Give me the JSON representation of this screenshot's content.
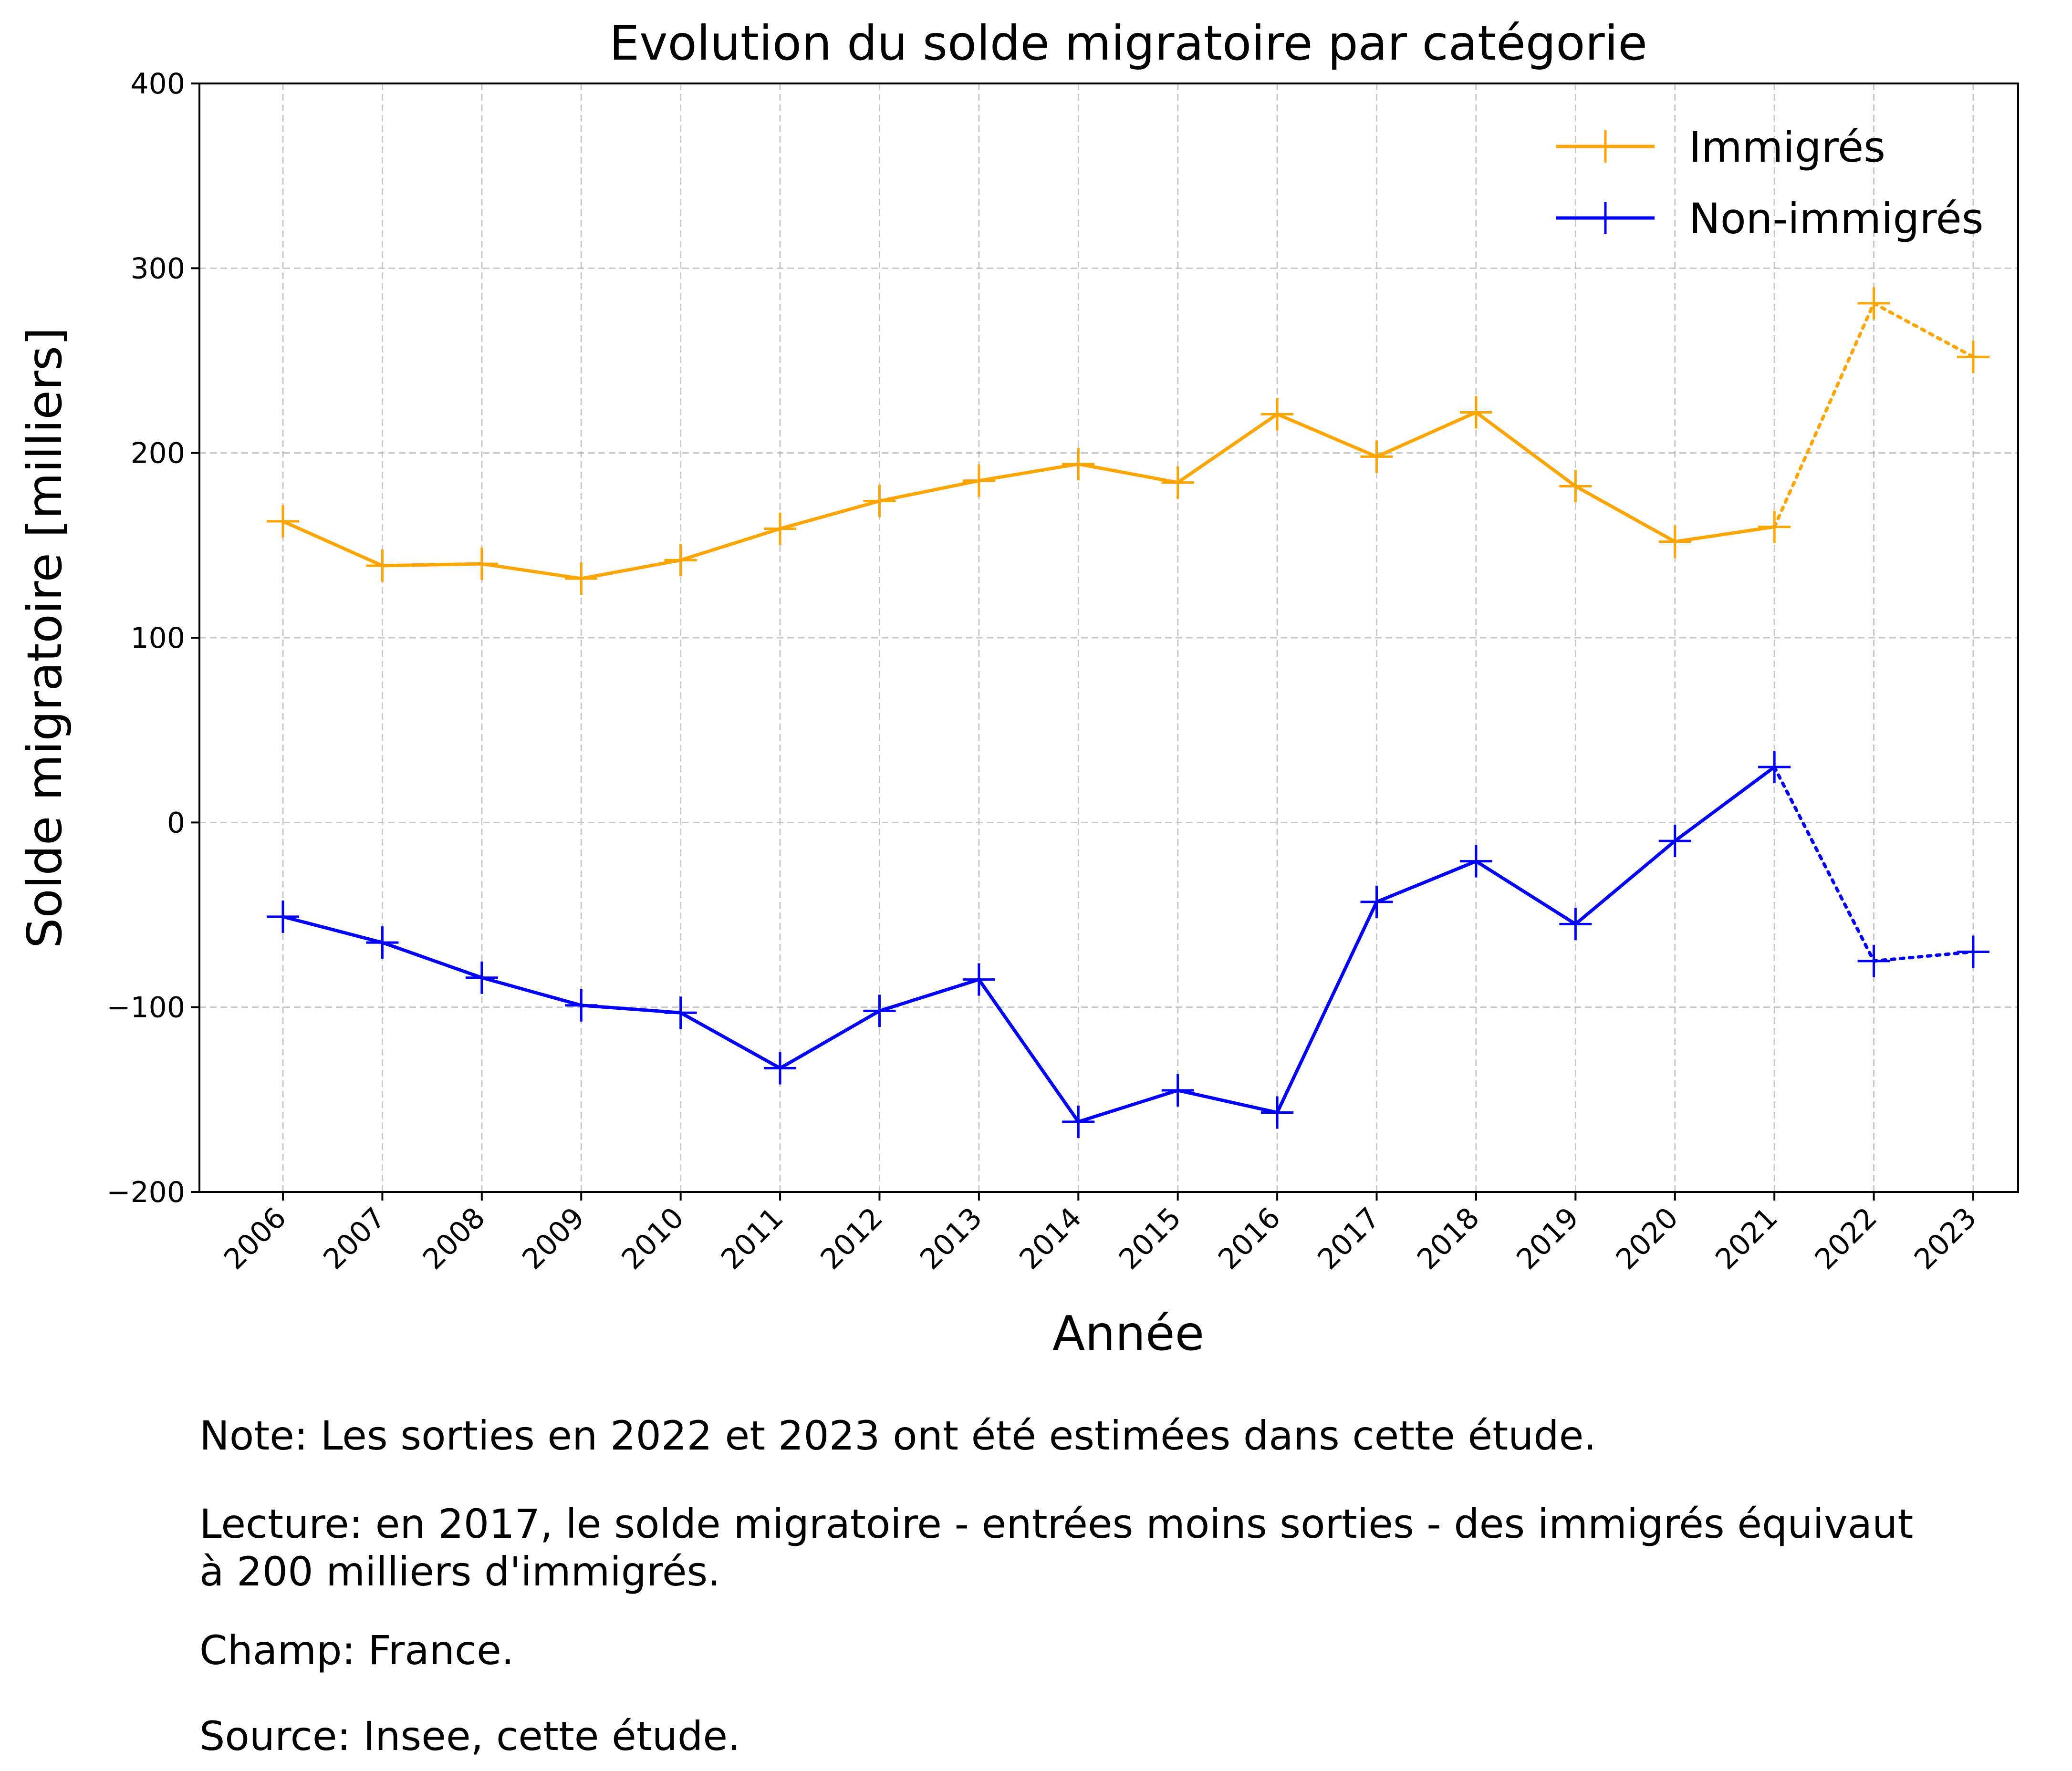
{
  "chart_data": {
    "type": "line",
    "title": "Evolution du solde migratoire par catégorie",
    "xlabel": "Année",
    "ylabel": "Solde migratoire [milliers]",
    "categories": [
      "2006",
      "2007",
      "2008",
      "2009",
      "2010",
      "2011",
      "2012",
      "2013",
      "2014",
      "2015",
      "2016",
      "2017",
      "2018",
      "2019",
      "2020",
      "2021",
      "2022",
      "2023"
    ],
    "ylim": [
      -200,
      400
    ],
    "yticks": [
      -200,
      -100,
      0,
      100,
      200,
      300,
      400
    ],
    "ytick_labels": [
      "−200",
      "−100",
      "0",
      "100",
      "200",
      "300",
      "400"
    ],
    "grid": true,
    "legend_position": "top-right",
    "estimated_from": "2021",
    "series": [
      {
        "name": "Immigrés",
        "color": "#ffa500",
        "marker": "plus",
        "values": [
          163,
          139,
          140,
          132,
          142,
          159,
          174,
          185,
          194,
          184,
          221,
          198,
          222,
          182,
          152,
          160,
          281,
          252
        ]
      },
      {
        "name": "Non-immigrés",
        "color": "#0000ff",
        "marker": "plus",
        "values": [
          -51,
          -65,
          -84,
          -99,
          -103,
          -133,
          -102,
          -85,
          -162,
          -145,
          -157,
          -43,
          -21,
          -55,
          -10,
          30,
          -75,
          -70
        ]
      }
    ]
  },
  "notes": {
    "note": "Note: Les sorties en 2022 et 2023 ont été estimées dans cette étude.",
    "lecture": "Lecture: en 2017, le solde migratoire - entrées moins sorties - des immigrés équivaut à 200 milliers d'immigrés.",
    "champ": "Champ: France.",
    "source": "Source: Insee, cette étude."
  }
}
